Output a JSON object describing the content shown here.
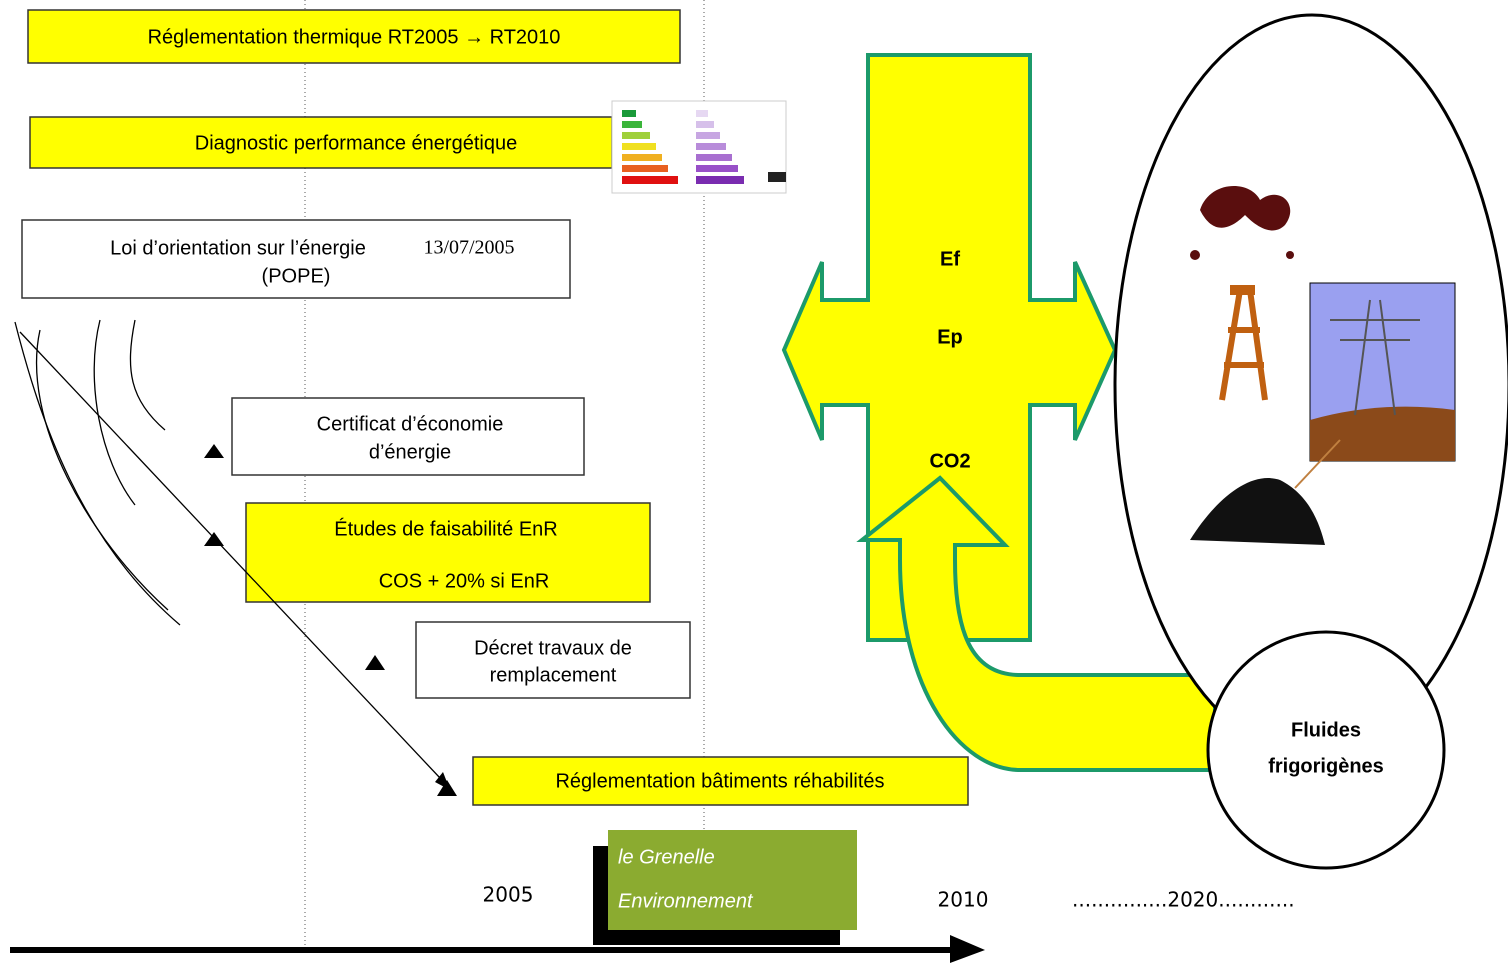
{
  "header": {
    "title": "Réglementation thermique RT2005 → RT2010"
  },
  "boxes": [
    {
      "lines": [
        "Diagnostic performance énergétique"
      ]
    },
    {
      "lines": [
        "Loi d’orientation sur l’énergie",
        "13/07/2005",
        "(POPE)"
      ]
    },
    {
      "lines": [
        "Certificat d’économie",
        "d’énergie"
      ]
    },
    {
      "lines": [
        "Études de faisabilité EnR",
        "COS + 20% si EnR"
      ]
    },
    {
      "lines": [
        "Décret travaux de",
        "remplacement"
      ]
    },
    {
      "lines": [
        "Réglementation bâtiments réhabilités"
      ]
    }
  ],
  "cross": {
    "labels": [
      "Ef",
      "Ep",
      "CO2"
    ]
  },
  "circle": {
    "lines": [
      "Fluides",
      "frigorigènes"
    ]
  },
  "logo": {
    "lines": [
      "le Grenelle",
      "Environnement"
    ]
  },
  "timeline": {
    "labels": [
      "2005",
      "2010",
      "...............2020............"
    ]
  }
}
